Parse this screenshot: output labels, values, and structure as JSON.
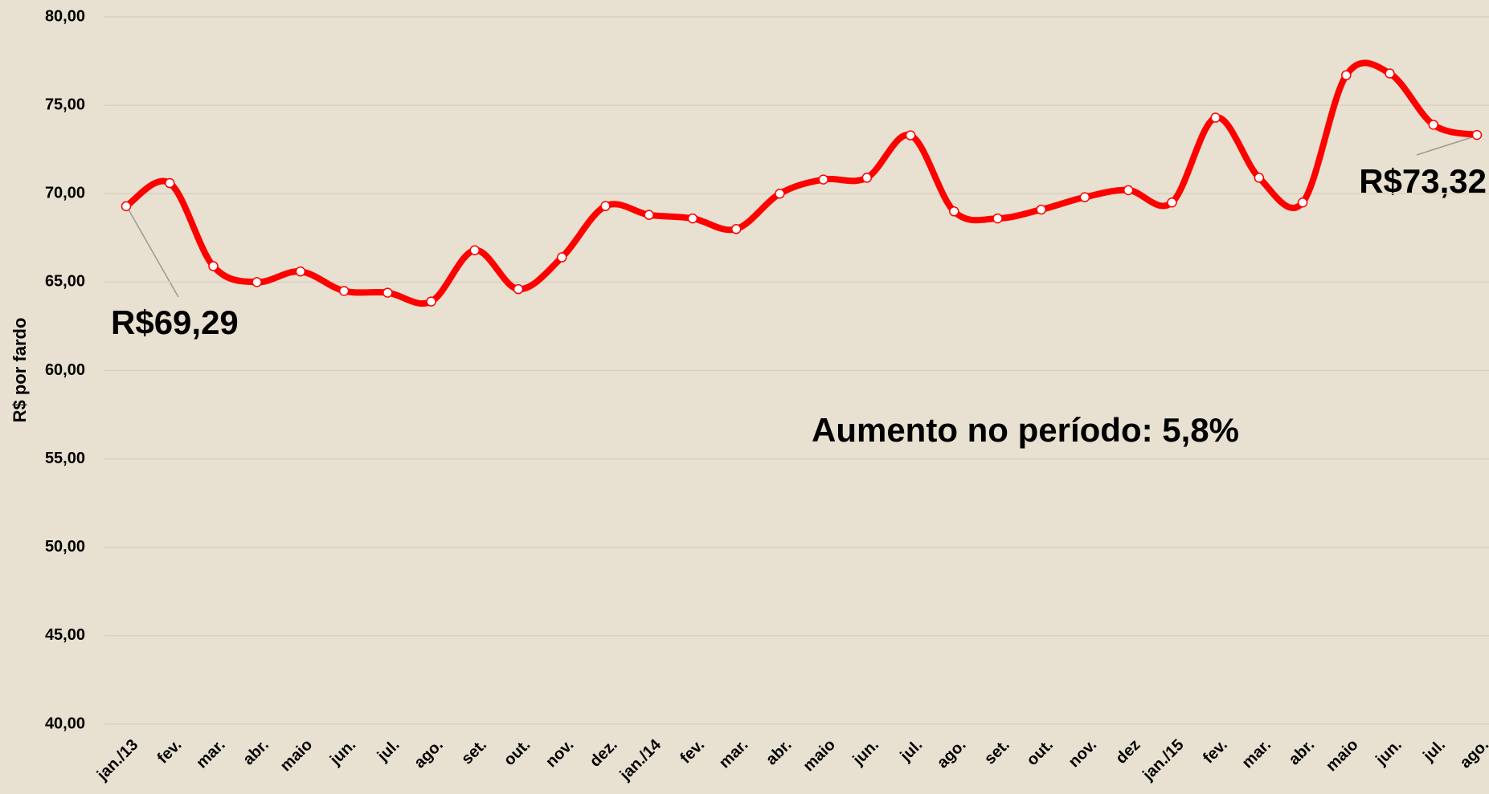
{
  "chart_data": {
    "type": "line",
    "y_label": "R$ por fardo",
    "annotations": [
      "R$69,29",
      "R$73,32",
      "Aumento no período: 5,8%"
    ],
    "categories": [
      "jan./13",
      "fev.",
      "mar.",
      "abr.",
      "maio",
      "jun.",
      "jul.",
      "ago.",
      "set.",
      "out.",
      "nov.",
      "dez.",
      "jan./14",
      "fev.",
      "mar.",
      "abr.",
      "maio",
      "jun.",
      "jul.",
      "ago.",
      "set.",
      "out.",
      "nov.",
      "dez",
      "jan./15",
      "fev.",
      "mar.",
      "abr.",
      "maio",
      "jun.",
      "jul.",
      "ago."
    ],
    "series": [
      {
        "name": "R$ por fardo",
        "color": "#ff0000",
        "values": [
          69.29,
          70.6,
          65.9,
          65.0,
          65.6,
          64.5,
          64.4,
          63.9,
          66.8,
          64.6,
          66.4,
          69.3,
          68.8,
          68.6,
          68.0,
          70.0,
          70.8,
          70.9,
          73.3,
          69.0,
          68.6,
          69.1,
          69.8,
          70.2,
          69.5,
          74.3,
          70.9,
          69.5,
          76.7,
          76.8,
          73.9,
          73.32
        ]
      }
    ],
    "ylim": [
      40,
      80
    ],
    "yticks": [
      {
        "value": 40,
        "label": "40,00"
      },
      {
        "value": 45,
        "label": "45,00"
      },
      {
        "value": 50,
        "label": "50,00"
      },
      {
        "value": 55,
        "label": "55,00"
      },
      {
        "value": 60,
        "label": "60,00"
      },
      {
        "value": 65,
        "label": "65,00"
      },
      {
        "value": 70,
        "label": "70,00"
      },
      {
        "value": 75,
        "label": "75,00"
      },
      {
        "value": 80,
        "label": "80,00"
      }
    ],
    "grid": true
  }
}
